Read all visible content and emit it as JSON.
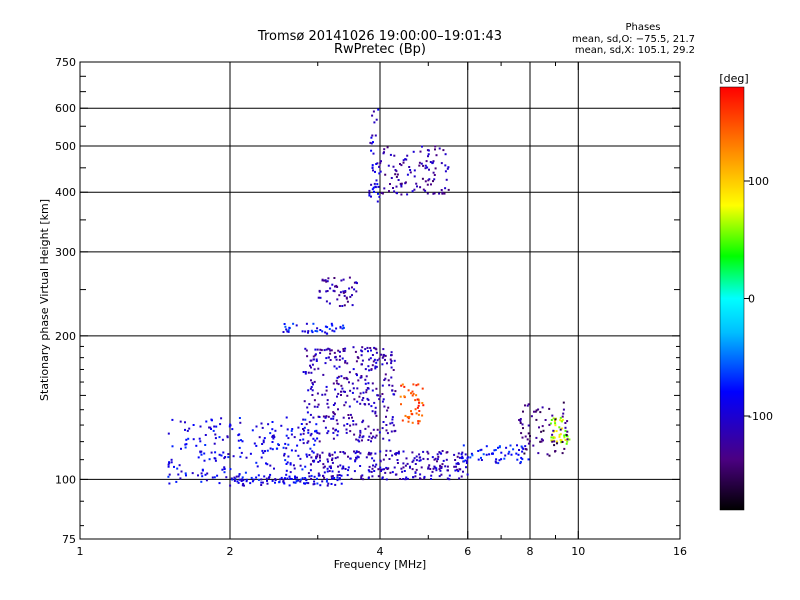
{
  "chart_data": {
    "type": "scatter",
    "title_lines": [
      "Tromsø 20141026 19:00:00–19:01:43",
      "RwPretec (Bp)"
    ],
    "stats": {
      "heading": "Phases",
      "line_o": "mean, sd,O: −75.5, 21.7",
      "line_x": "mean, sd,X: 105.1, 29.2"
    },
    "xlabel": "Frequency [MHz]",
    "ylabel": "Stationary phase Virtual Height [km]",
    "x_scale": "log",
    "y_scale": "log",
    "xlim": [
      1,
      16
    ],
    "ylim": [
      75,
      750
    ],
    "x_ticks": [
      1,
      2,
      4,
      6,
      8,
      10,
      16
    ],
    "x_minor": [
      3,
      5,
      7,
      9
    ],
    "y_ticks": [
      75,
      100,
      200,
      300,
      400,
      500,
      600,
      750
    ],
    "x_grid": [
      2,
      4,
      6,
      8,
      10
    ],
    "y_grid": [
      100,
      200,
      300,
      400,
      500,
      600
    ],
    "grid": true,
    "colorbar": {
      "label": "[deg]",
      "range": [
        -180,
        180
      ],
      "ticks": [
        100,
        0,
        -100
      ],
      "placement": "right"
    },
    "series": [
      {
        "x_range": [
          1.5,
          3.0
        ],
        "y_range": [
          98,
          135
        ],
        "phase": -90,
        "count": 240
      },
      {
        "x_range": [
          2.0,
          3.4
        ],
        "y_range": [
          97,
          102
        ],
        "phase": -90,
        "count": 80
      },
      {
        "x_range": [
          2.9,
          6.0
        ],
        "y_range": [
          100,
          115
        ],
        "phase": -110,
        "count": 260
      },
      {
        "x_range": [
          5.8,
          8.0
        ],
        "y_range": [
          108,
          118
        ],
        "phase": -80,
        "count": 60
      },
      {
        "x_range": [
          2.8,
          4.3
        ],
        "y_range": [
          120,
          190
        ],
        "phase": -115,
        "count": 330
      },
      {
        "x_range": [
          4.4,
          4.9
        ],
        "y_range": [
          130,
          160
        ],
        "phase": 150,
        "count": 45
      },
      {
        "x_range": [
          8.8,
          9.6
        ],
        "y_range": [
          118,
          135
        ],
        "phase": 70,
        "count": 45
      },
      {
        "x_range": [
          7.6,
          9.6
        ],
        "y_range": [
          112,
          145
        ],
        "phase": -140,
        "count": 70
      },
      {
        "x_range": [
          2.5,
          3.4
        ],
        "y_range": [
          202,
          212
        ],
        "phase": -80,
        "count": 40
      },
      {
        "x_range": [
          3.0,
          3.6
        ],
        "y_range": [
          230,
          265
        ],
        "phase": -120,
        "count": 50
      },
      {
        "x_range": [
          3.8,
          4.0
        ],
        "y_range": [
          380,
          610
        ],
        "phase": -100,
        "count": 40
      },
      {
        "x_range": [
          4.0,
          5.5
        ],
        "y_range": [
          395,
          500
        ],
        "phase": -120,
        "count": 110
      }
    ]
  }
}
